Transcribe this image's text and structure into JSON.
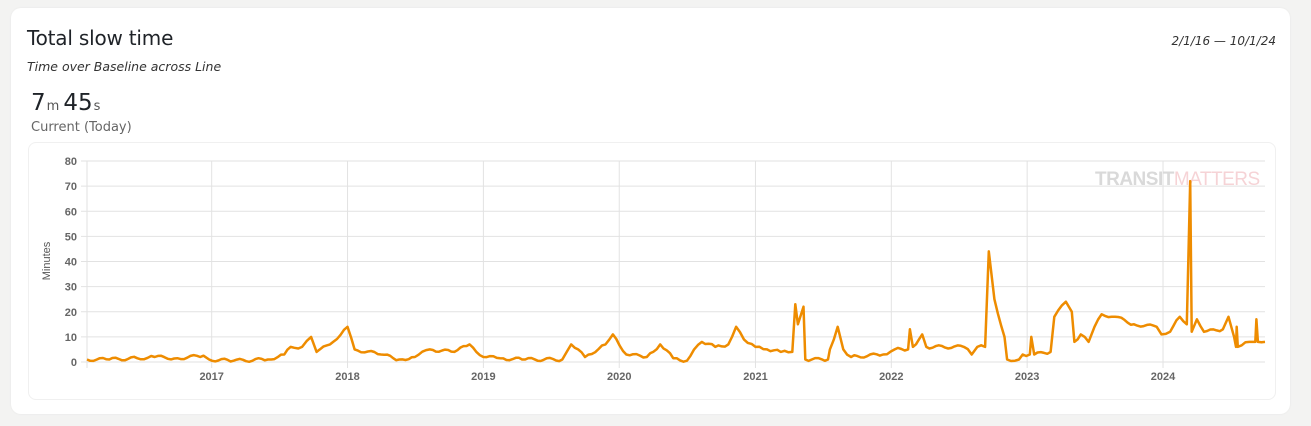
{
  "card": {
    "title": "Total slow time",
    "subtitle": "Time over Baseline across Line",
    "date_range": "2/1/16 — 10/1/24",
    "current": {
      "minutes": "7",
      "minutes_unit": "m",
      "seconds": "45",
      "seconds_unit": "s",
      "caption": "Current (Today)"
    }
  },
  "watermark": {
    "part1": "TRANSIT",
    "part2": "MATTERS",
    "color1": "#d9d9d9",
    "color2": "#f6d3d6"
  },
  "chart_data": {
    "type": "line",
    "title": "",
    "xlabel": "",
    "ylabel": "Minutes",
    "xlim": [
      "2016-02-01",
      "2024-10-01"
    ],
    "ylim": [
      0,
      80
    ],
    "yticks": [
      0,
      10,
      20,
      30,
      40,
      50,
      60,
      70,
      80
    ],
    "xticks": [
      "2017",
      "2018",
      "2019",
      "2020",
      "2021",
      "2022",
      "2023",
      "2024"
    ],
    "grid": true,
    "line_color": "#ee8c00",
    "series": [
      {
        "points": [
          [
            "2016-02-01",
            1
          ],
          [
            "2016-04-01",
            1
          ],
          [
            "2016-06-15",
            1.5
          ],
          [
            "2016-08-01",
            2
          ],
          [
            "2016-10-01",
            1.5
          ],
          [
            "2016-12-10",
            2.5
          ],
          [
            "2016-12-25",
            1
          ],
          [
            "2017-03-01",
            0.5
          ],
          [
            "2017-06-01",
            1
          ],
          [
            "2017-07-15",
            3
          ],
          [
            "2017-08-01",
            6
          ],
          [
            "2017-09-01",
            6
          ],
          [
            "2017-09-25",
            10
          ],
          [
            "2017-10-10",
            4
          ],
          [
            "2017-11-15",
            7
          ],
          [
            "2018-01-01",
            14
          ],
          [
            "2018-01-20",
            5
          ],
          [
            "2018-04-01",
            3
          ],
          [
            "2018-05-20",
            1
          ],
          [
            "2018-07-01",
            2
          ],
          [
            "2018-08-10",
            5
          ],
          [
            "2018-10-15",
            4
          ],
          [
            "2018-11-25",
            7
          ],
          [
            "2019-01-01",
            2
          ],
          [
            "2019-02-15",
            1.5
          ],
          [
            "2019-04-15",
            1
          ],
          [
            "2019-08-01",
            1
          ],
          [
            "2019-08-25",
            7
          ],
          [
            "2019-10-01",
            2
          ],
          [
            "2019-11-25",
            7
          ],
          [
            "2019-12-15",
            11
          ],
          [
            "2020-01-20",
            3
          ],
          [
            "2020-03-15",
            2
          ],
          [
            "2020-04-20",
            7
          ],
          [
            "2020-05-25",
            1.5
          ],
          [
            "2020-07-01",
            0.5
          ],
          [
            "2020-07-20",
            5
          ],
          [
            "2020-08-10",
            8
          ],
          [
            "2020-09-15",
            6
          ],
          [
            "2020-10-20",
            7
          ],
          [
            "2020-11-10",
            14
          ],
          [
            "2020-12-01",
            9
          ],
          [
            "2021-01-01",
            6
          ],
          [
            "2021-02-01",
            5
          ],
          [
            "2021-03-10",
            4
          ],
          [
            "2021-04-10",
            4
          ],
          [
            "2021-04-18",
            23
          ],
          [
            "2021-04-25",
            15
          ],
          [
            "2021-05-10",
            22
          ],
          [
            "2021-05-15",
            1
          ],
          [
            "2021-07-15",
            1
          ],
          [
            "2021-07-20",
            5
          ],
          [
            "2021-08-10",
            14
          ],
          [
            "2021-08-25",
            5
          ],
          [
            "2021-09-15",
            2
          ],
          [
            "2021-12-10",
            3
          ],
          [
            "2022-01-10",
            5
          ],
          [
            "2022-02-15",
            5
          ],
          [
            "2022-02-20",
            13
          ],
          [
            "2022-02-28",
            6
          ],
          [
            "2022-03-25",
            11
          ],
          [
            "2022-04-05",
            6
          ],
          [
            "2022-07-15",
            6
          ],
          [
            "2022-08-05",
            3
          ],
          [
            "2022-08-20",
            6
          ],
          [
            "2022-09-10",
            6
          ],
          [
            "2022-09-20",
            44
          ],
          [
            "2022-10-05",
            25
          ],
          [
            "2022-11-01",
            10
          ],
          [
            "2022-11-08",
            1
          ],
          [
            "2022-12-10",
            1
          ],
          [
            "2022-12-20",
            3
          ],
          [
            "2023-01-08",
            3
          ],
          [
            "2023-01-12",
            10
          ],
          [
            "2023-01-20",
            3
          ],
          [
            "2023-03-05",
            4
          ],
          [
            "2023-03-15",
            18
          ],
          [
            "2023-04-15",
            24
          ],
          [
            "2023-05-01",
            20
          ],
          [
            "2023-05-08",
            8
          ],
          [
            "2023-05-25",
            11
          ],
          [
            "2023-06-15",
            8
          ],
          [
            "2023-07-01",
            14
          ],
          [
            "2023-07-20",
            19
          ],
          [
            "2023-08-25",
            18
          ],
          [
            "2023-10-15",
            15
          ],
          [
            "2023-12-15",
            14
          ],
          [
            "2023-12-28",
            11
          ],
          [
            "2024-01-20",
            12
          ],
          [
            "2024-02-15",
            18
          ],
          [
            "2024-03-05",
            15
          ],
          [
            "2024-03-14",
            72
          ],
          [
            "2024-03-18",
            12
          ],
          [
            "2024-04-01",
            17
          ],
          [
            "2024-04-20",
            12
          ],
          [
            "2024-06-10",
            13
          ],
          [
            "2024-06-25",
            18
          ],
          [
            "2024-07-10",
            10
          ],
          [
            "2024-07-15",
            6
          ],
          [
            "2024-07-17",
            14
          ],
          [
            "2024-07-20",
            6
          ],
          [
            "2024-08-20",
            8
          ],
          [
            "2024-09-05",
            8
          ],
          [
            "2024-09-08",
            17
          ],
          [
            "2024-09-12",
            8
          ],
          [
            "2024-10-01",
            8
          ]
        ]
      }
    ]
  }
}
